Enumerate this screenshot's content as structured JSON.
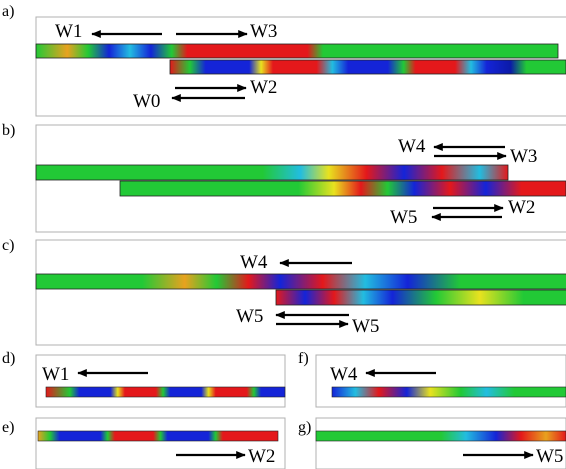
{
  "panel_labels": {
    "a": "a)",
    "b": "b)",
    "c": "c)",
    "d": "d)",
    "e": "e)",
    "f": "f)",
    "g": "g)"
  },
  "wave_labels": {
    "a_w1": "W1",
    "a_w3": "W3",
    "a_w2": "W2",
    "a_w0": "W0",
    "b_w4": "W4",
    "b_w3": "W3",
    "b_w5": "W5",
    "b_w2": "W2",
    "c_w4": "W4",
    "c_w5_left": "W5",
    "c_w5_right": "W5",
    "d_w1": "W1",
    "f_w4": "W4",
    "e_w2": "W2",
    "g_w5": "W5"
  },
  "colormap": {
    "red": "#e4181b",
    "orange": "#f07a1e",
    "yellow": "#e8e21f",
    "green": "#22c936",
    "cyan": "#22bde0",
    "blue": "#1424d8",
    "dark_blue": "#0b1aa8"
  }
}
